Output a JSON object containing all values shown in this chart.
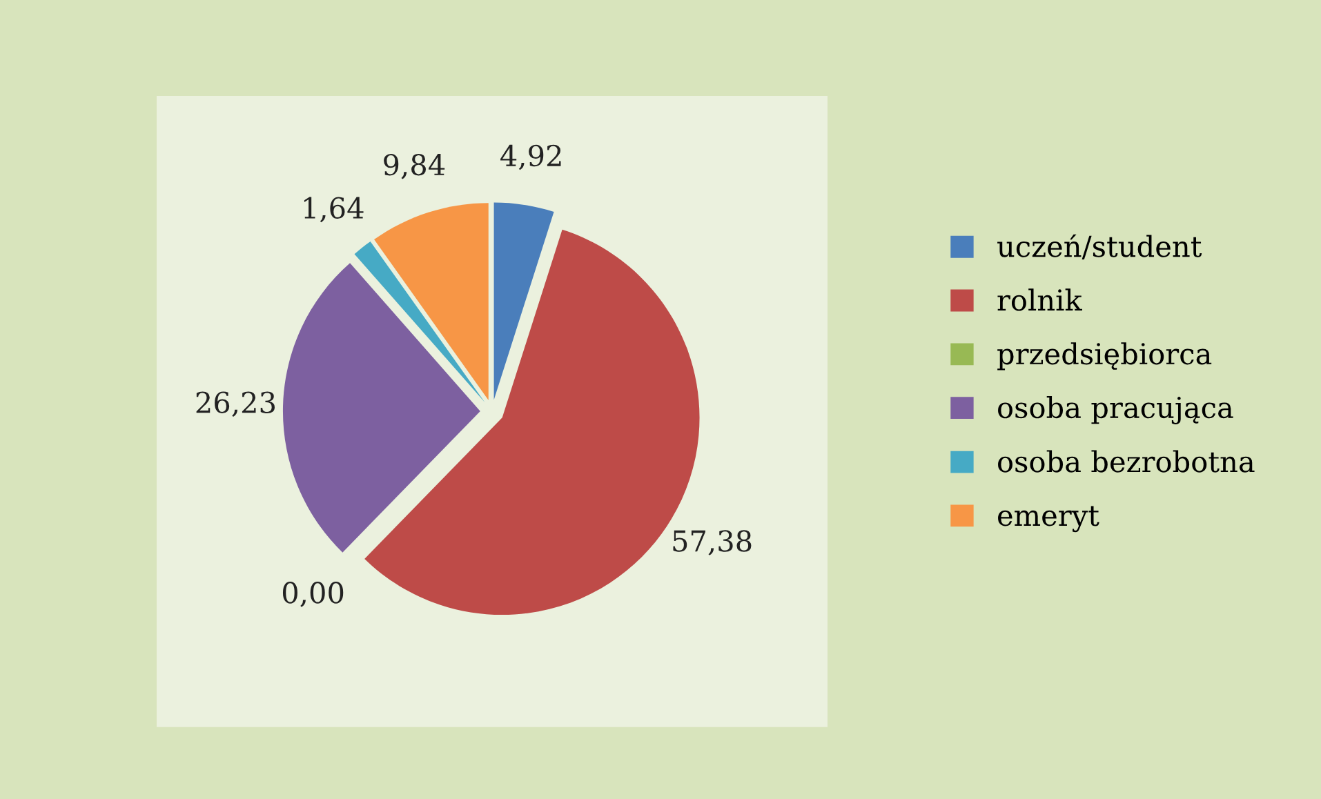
{
  "chart_data": {
    "type": "pie",
    "categories": [
      "uczeń/student",
      "rolnik",
      "przedsiębiorca",
      "osoba pracująca",
      "osoba bezrobotna",
      "emeryt"
    ],
    "values": [
      4.92,
      57.38,
      0.0,
      26.23,
      1.64,
      9.84
    ],
    "value_labels": [
      "4,92",
      "57,38",
      "0,00",
      "26,23",
      "1,64",
      "9,84"
    ],
    "colors": [
      "#4a7ebb",
      "#be4b48",
      "#98b954",
      "#7d60a0",
      "#46aac5",
      "#f79646"
    ],
    "legend": "right"
  }
}
